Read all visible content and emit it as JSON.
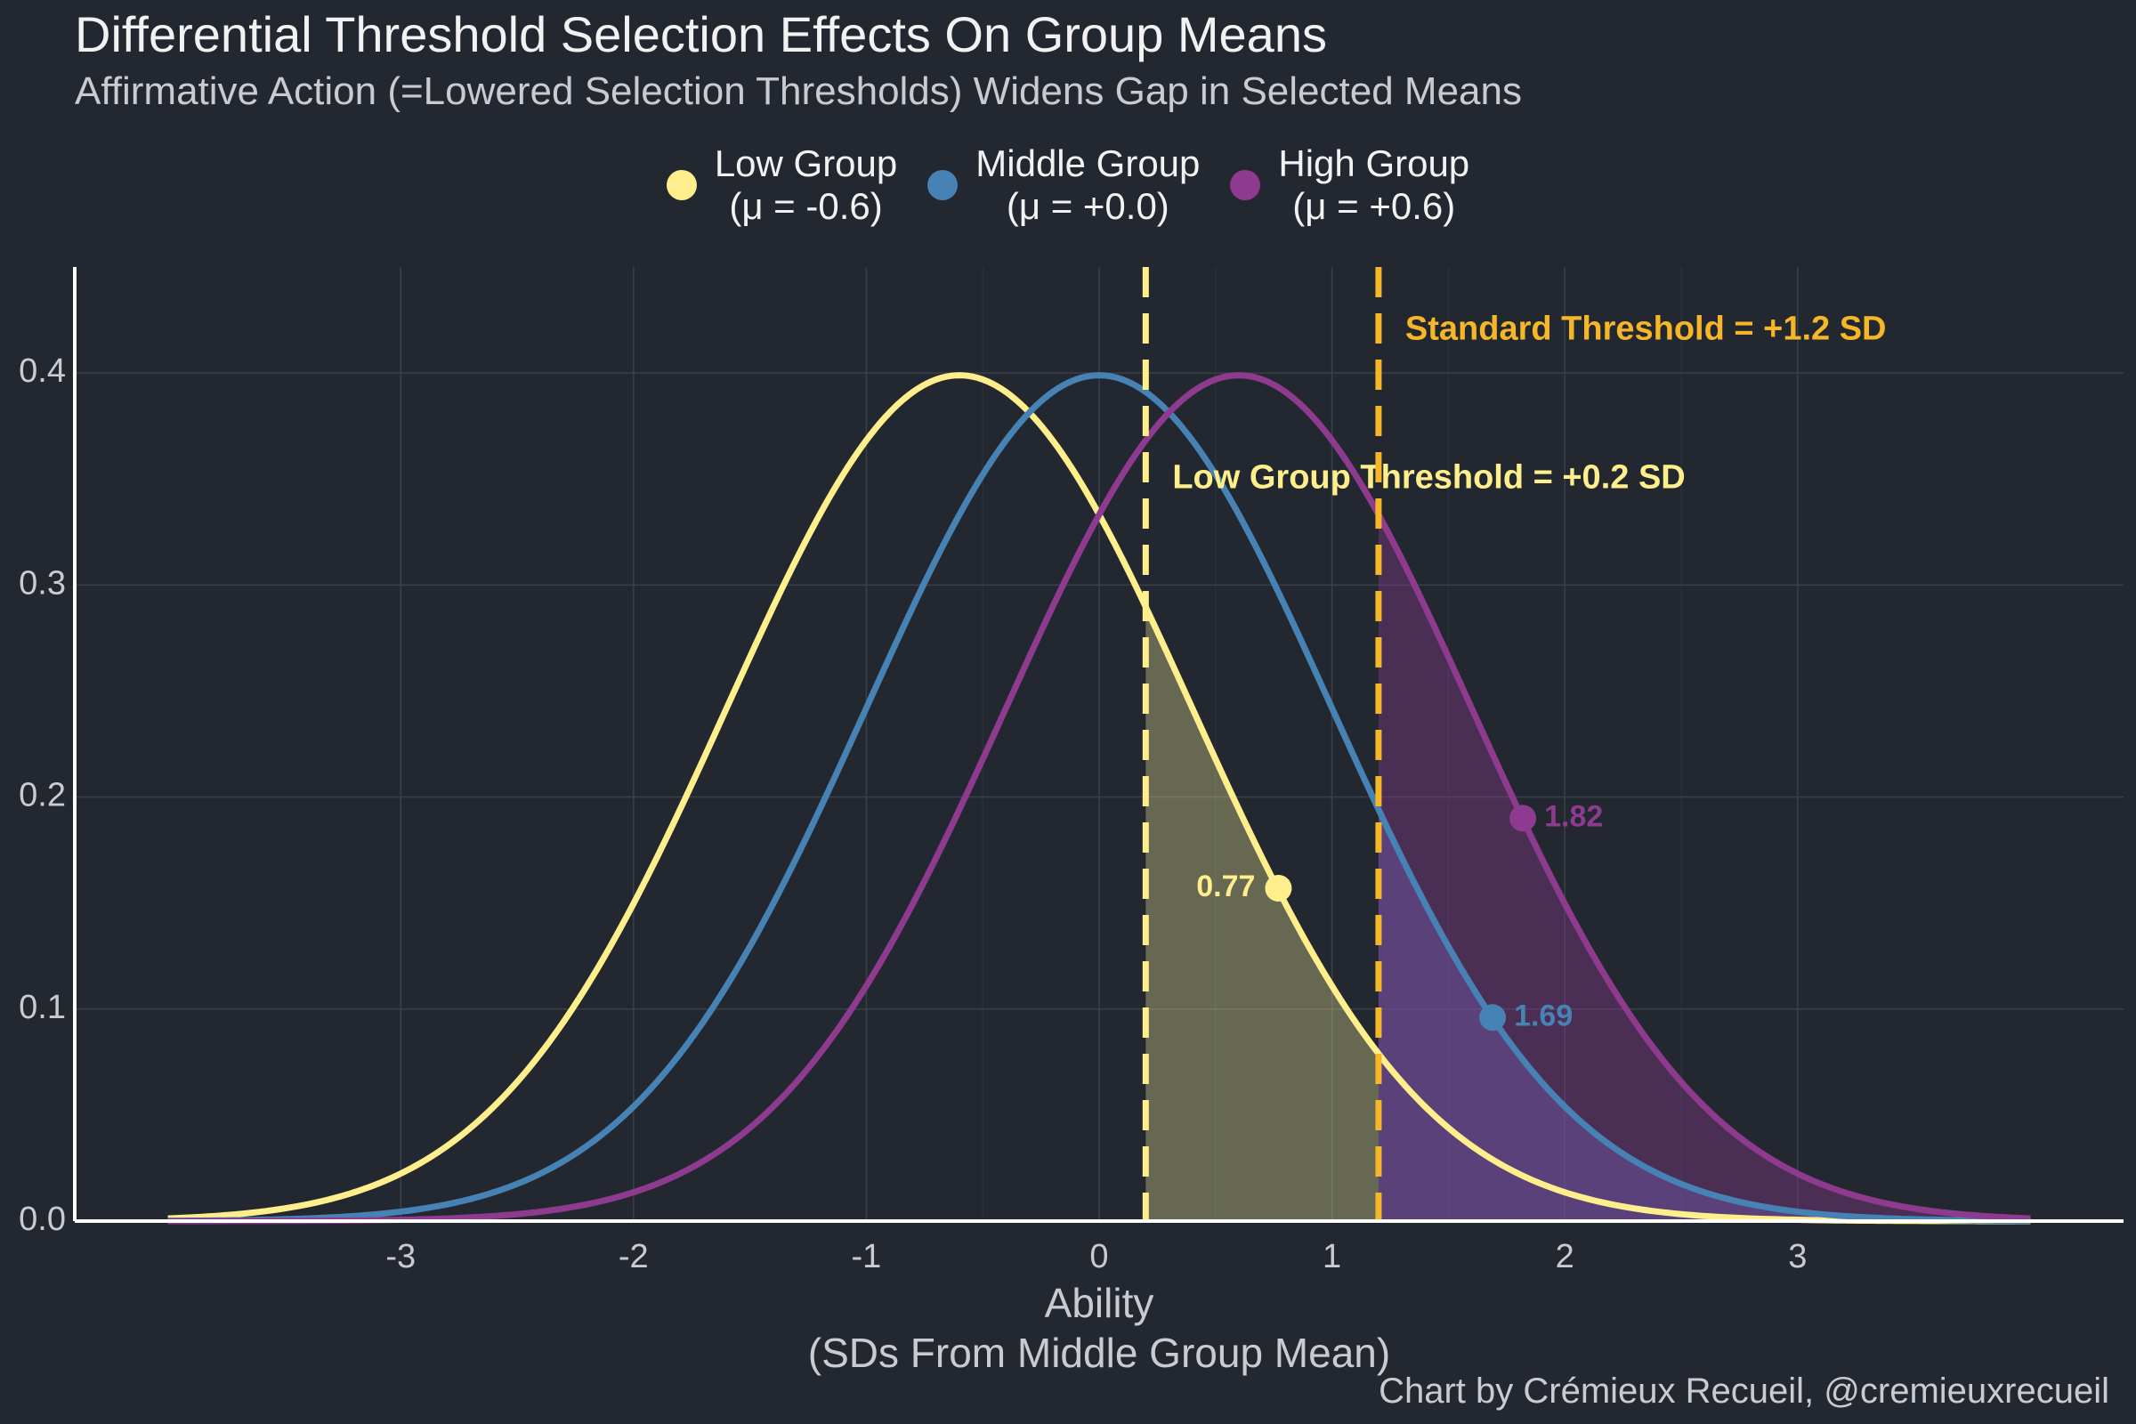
{
  "title": "Differential Threshold Selection Effects On Group Means",
  "subtitle": "Affirmative Action (=Lowered Selection Thresholds) Widens Gap in Selected Means",
  "caption": "Chart by Crémieux Recueil, @cremieuxrecueil",
  "colors": {
    "background": "#232830",
    "low": "#FFEE8C",
    "middle": "#4682B4",
    "high": "#8E3A8E",
    "threshold": "#F5B728",
    "text": "#f2f2f2",
    "muted": "#c9cbcf"
  },
  "legend": [
    {
      "name": "Low Group",
      "sub": "(μ = -0.6)",
      "color": "#FFEE8C"
    },
    {
      "name": "Middle Group",
      "sub": "(μ = +0.0)",
      "color": "#4682B4"
    },
    {
      "name": "High Group",
      "sub": "(μ = +0.6)",
      "color": "#8E3A8E"
    }
  ],
  "chart_data": {
    "type": "line",
    "xlabel": "Ability",
    "xlabel2": "(SDs From Middle Group Mean)",
    "ylabel": "",
    "xlim": [
      -4.4,
      4.4
    ],
    "ylim": [
      0,
      0.45
    ],
    "xticks": [
      -3,
      -2,
      -1,
      0,
      1,
      2,
      3
    ],
    "xtick_labels": [
      "-3",
      "-2",
      "-1",
      "0",
      "1",
      "2",
      "3"
    ],
    "yticks": [
      0,
      0.1,
      0.2,
      0.3,
      0.4
    ],
    "ytick_labels": [
      "0.0",
      "0.1",
      "0.2",
      "0.3",
      "0.4"
    ],
    "grid": true,
    "legend_position": "top-center",
    "curve_x_range": [
      -4,
      4
    ],
    "series": [
      {
        "name": "Low Group",
        "label": "(μ = -0.6)",
        "distribution": "normal",
        "mean": -0.6,
        "sd": 1,
        "color": "#FFEE8C",
        "fill_from": 0.2,
        "fill_to": 1.2,
        "fill_color": "#F0EE98",
        "fill_opacity": 0.33
      },
      {
        "name": "Middle Group",
        "label": "(μ = +0.0)",
        "distribution": "normal",
        "mean": 0.0,
        "sd": 1,
        "color": "#4682B4",
        "fill_from": 1.2,
        "fill_to": 4,
        "fill_color": "#5B6FC8",
        "fill_opacity": 0.42
      },
      {
        "name": "High Group",
        "label": "(μ = +0.6)",
        "distribution": "normal",
        "mean": 0.6,
        "sd": 1,
        "color": "#8E3A8E",
        "fill_from": 1.2,
        "fill_to": 4,
        "fill_color": "#8E3A8E",
        "fill_opacity": 0.38
      }
    ],
    "thresholds": [
      {
        "x": 0.2,
        "label": "Low Group Threshold = +0.2 SD",
        "line_color": "#FFEE8C",
        "label_color": "#FFEE8C",
        "label_y": 0.35
      },
      {
        "x": 1.2,
        "label": "Standard Threshold = +1.2 SD",
        "line_color": "#F5B728",
        "label_color": "#F5B728",
        "label_y": 0.42
      }
    ],
    "selected_means": [
      {
        "series": "Low Group",
        "x": 0.77,
        "y": 0.157,
        "label": "0.77",
        "color": "#FFEE8C",
        "label_side": "left"
      },
      {
        "series": "Middle Group",
        "x": 1.69,
        "y": 0.096,
        "label": "1.69",
        "color": "#4682B4",
        "label_side": "right"
      },
      {
        "series": "High Group",
        "x": 1.82,
        "y": 0.19,
        "label": "1.82",
        "color": "#8E3A8E",
        "label_side": "right"
      }
    ]
  }
}
